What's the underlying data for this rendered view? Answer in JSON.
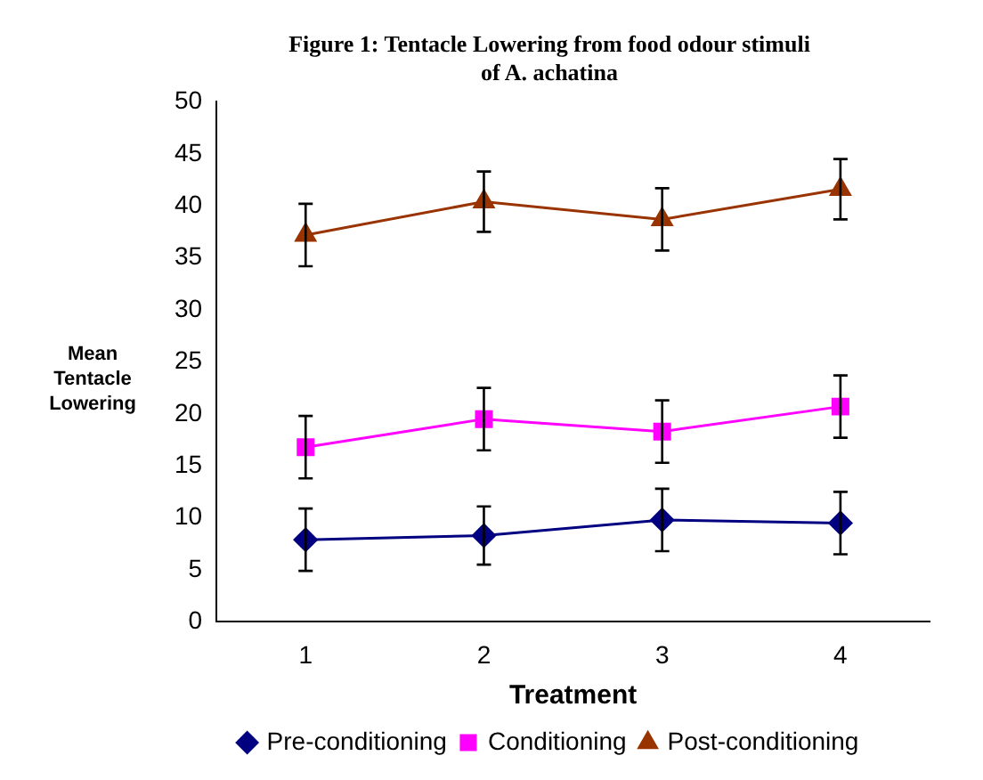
{
  "chart_data": {
    "type": "line",
    "title": "Figure 1: Tentacle Lowering from food odour stimuli of A. achatina",
    "xlabel": "Treatment",
    "ylabel": "Mean Tentacle Lowering",
    "categories": [
      "1",
      "2",
      "3",
      "4"
    ],
    "ylim": [
      0,
      50
    ],
    "yticks": [
      0,
      5,
      10,
      15,
      20,
      25,
      30,
      35,
      40,
      45,
      50
    ],
    "grid": false,
    "legend": "bottom",
    "line_style": "solid",
    "series": [
      {
        "name": "Pre-conditioning",
        "color": "#000080",
        "marker": "diamond",
        "values": [
          7.9,
          8.3,
          9.8,
          9.5
        ],
        "errors": [
          3,
          2.8,
          3,
          3
        ]
      },
      {
        "name": "Conditioning",
        "color": "#ff00ff",
        "marker": "square",
        "values": [
          16.8,
          19.5,
          18.3,
          20.7
        ],
        "errors": [
          3,
          3,
          3,
          3
        ]
      },
      {
        "name": "Post-conditioning",
        "color": "#993300",
        "marker": "triangle",
        "values": [
          37.2,
          40.4,
          38.7,
          41.6
        ],
        "errors": [
          3,
          2.9,
          3,
          2.9
        ]
      }
    ]
  }
}
